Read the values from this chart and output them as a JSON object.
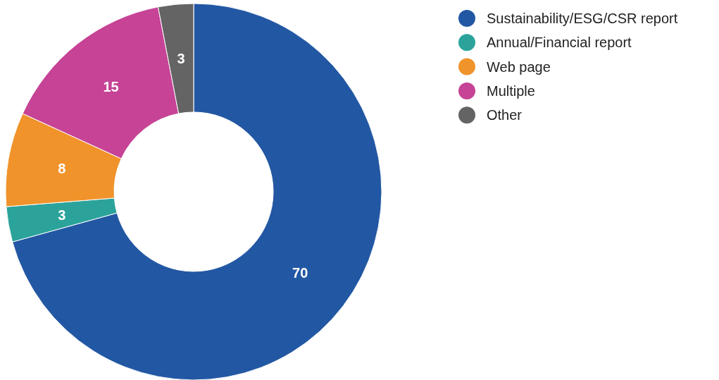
{
  "chart_data": {
    "type": "donut",
    "categories": [
      "Sustainability/ESG/CSR report",
      "Annual/Financial report",
      "Web page",
      "Multiple",
      "Other"
    ],
    "values": [
      70,
      3,
      8,
      15,
      3
    ],
    "colors": [
      "#2257a3",
      "#2ba39b",
      "#f0932b",
      "#c64396",
      "#646464"
    ],
    "data_labels": true,
    "legend": "top right"
  }
}
